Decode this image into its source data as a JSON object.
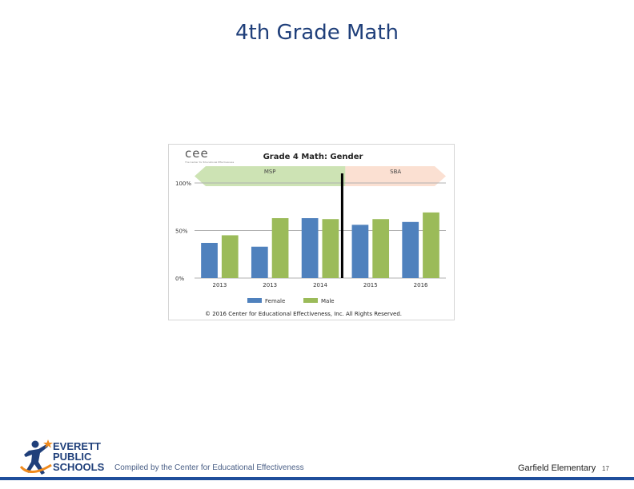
{
  "slide": {
    "title": "4th Grade Math",
    "footer_credit": "Compiled by the Center for Educational Effectiveness",
    "school": "Garfield Elementary",
    "page_number": "17"
  },
  "logo": {
    "line1": "EVERETT",
    "line2": "PUBLIC",
    "line3": "SCHOOLS",
    "icon": "runner-figure-icon",
    "colors": {
      "navy": "#1f3f7a",
      "orange": "#f08a1c"
    }
  },
  "chart_badge": {
    "logo_text": "cee",
    "tagline": "The Center for Educational Effectiveness"
  },
  "chart_data": {
    "type": "bar",
    "title": "Grade 4 Math: Gender",
    "categories": [
      "2013",
      "2013",
      "2014",
      "2015",
      "2016"
    ],
    "series": [
      {
        "name": "Female",
        "color": "#4f81bd",
        "values": [
          37,
          33,
          63,
          56,
          59
        ]
      },
      {
        "name": "Male",
        "color": "#9bbb59",
        "values": [
          45,
          63,
          62,
          62,
          69
        ]
      }
    ],
    "ylim": [
      0,
      100
    ],
    "yticks": [
      {
        "value": 0,
        "label": "0%"
      },
      {
        "value": 50,
        "label": "50%"
      },
      {
        "value": 100,
        "label": "100%"
      }
    ],
    "grid": true,
    "legend": "bottom",
    "divider_after_category": 2,
    "test_bands": [
      {
        "label": "MSP",
        "from": 0,
        "to": 3,
        "color": "#cde3b4"
      },
      {
        "label": "SBA",
        "from": 3,
        "to": 5,
        "color": "#fbe0d2"
      }
    ],
    "copyright": "© 2016 Center for Educational Effectiveness, Inc. All Rights Reserved."
  }
}
